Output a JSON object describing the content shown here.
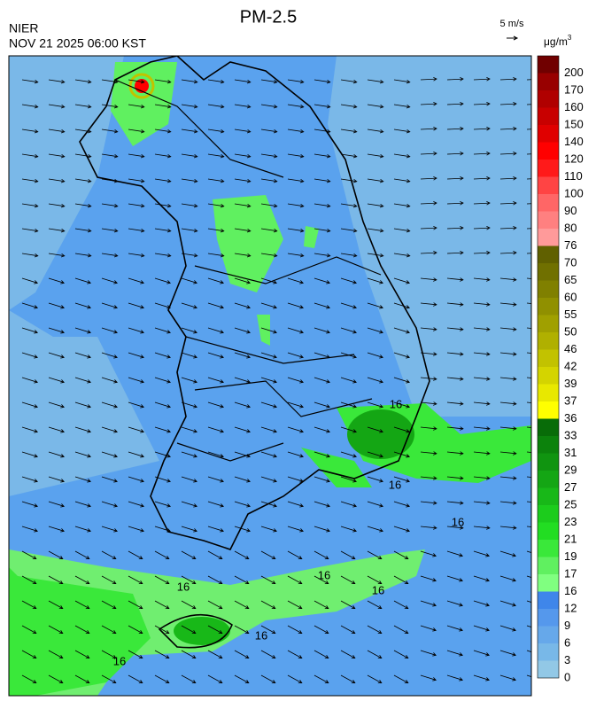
{
  "header": {
    "title": "PM-2.5",
    "agency": "NIER",
    "datetime": "NOV 21 2025 06:00 KST",
    "wind_scale": "5 m/s",
    "unit": "μg/m",
    "unit_exponent": "3"
  },
  "colorbar": {
    "levels": [
      0,
      3,
      6,
      9,
      12,
      16,
      17,
      19,
      21,
      23,
      25,
      27,
      29,
      31,
      33,
      36,
      37,
      39,
      42,
      46,
      50,
      55,
      60,
      65,
      70,
      76,
      80,
      90,
      100,
      110,
      120,
      140,
      150,
      160,
      170,
      200
    ],
    "colors": [
      "#92c8e6",
      "#78b8e8",
      "#66a8ea",
      "#5598ec",
      "#3f86ea",
      "#80ff80",
      "#60f060",
      "#3ae83a",
      "#22dd22",
      "#1ccc1c",
      "#18b818",
      "#14a614",
      "#109410",
      "#0c820c",
      "#086c08",
      "#ffff00",
      "#e8e800",
      "#d4d400",
      "#c2c200",
      "#b0b000",
      "#a0a000",
      "#909000",
      "#808000",
      "#707000",
      "#606000",
      "#ff9a9a",
      "#ff8080",
      "#ff6666",
      "#ff4444",
      "#ff1a1a",
      "#ff0000",
      "#e00000",
      "#c80000",
      "#b00000",
      "#980000",
      "#700000"
    ]
  },
  "map": {
    "contour_labels": [
      "16",
      "16",
      "16",
      "16",
      "16",
      "16",
      "16",
      "16"
    ]
  }
}
